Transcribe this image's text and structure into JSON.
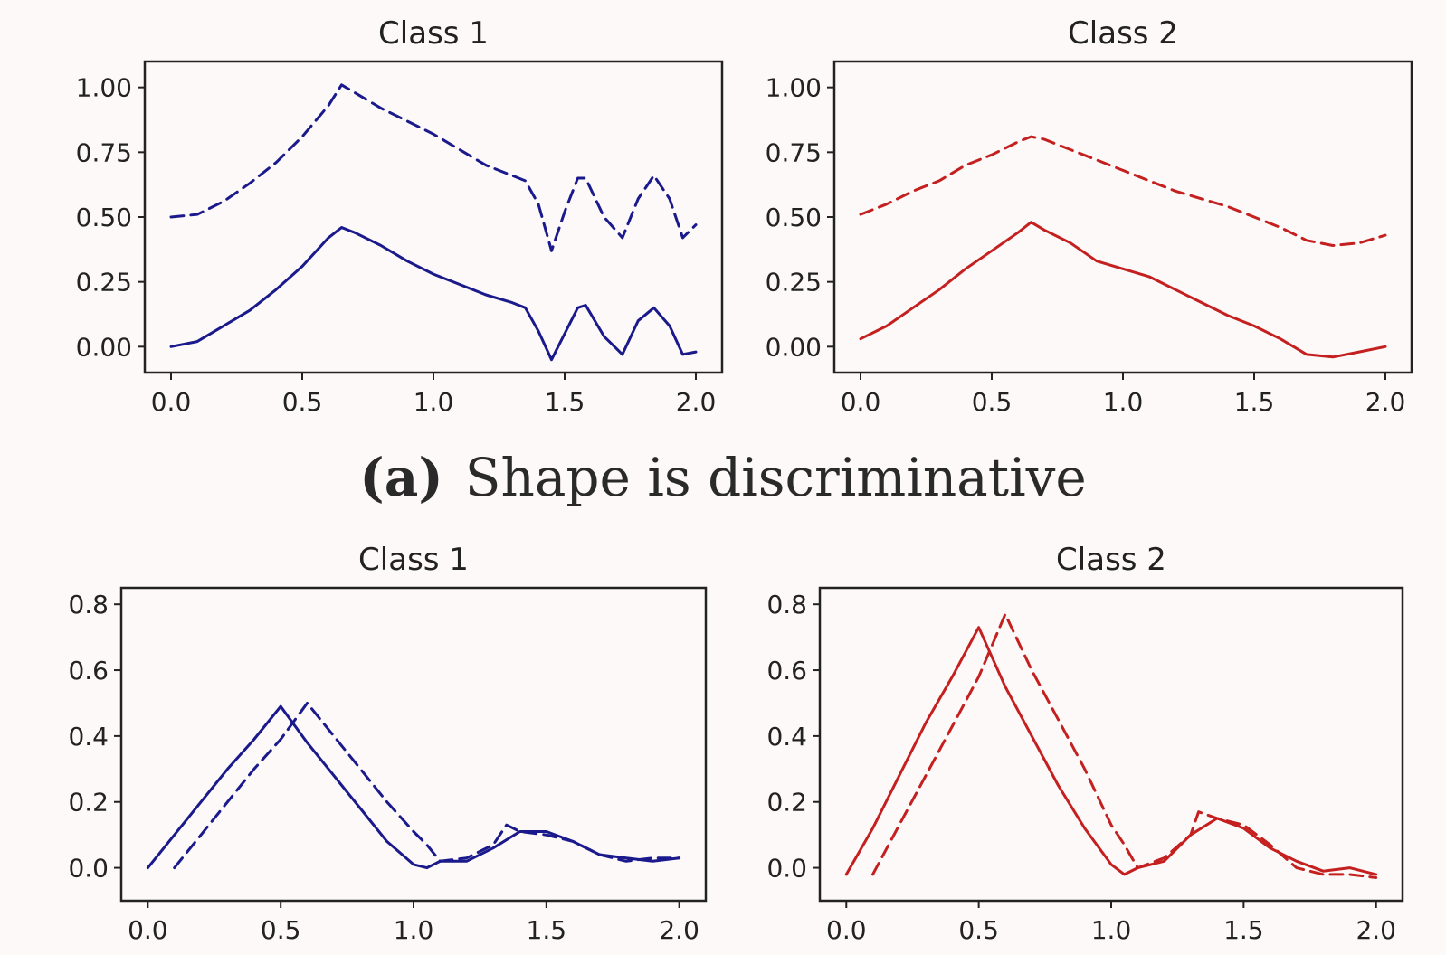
{
  "figure": {
    "caption_label": "(a)",
    "caption_text": "Shape is discriminative"
  },
  "chart_data": [
    {
      "type": "line",
      "title": "Class 1",
      "xlim": [
        -0.1,
        2.1
      ],
      "ylim": [
        -0.1,
        1.1
      ],
      "xticks": [
        "0.0",
        "0.5",
        "1.0",
        "1.5",
        "2.0"
      ],
      "yticks": [
        "0.00",
        "0.25",
        "0.50",
        "0.75",
        "1.00"
      ],
      "color": "#1a1a8c",
      "series": [
        {
          "style": "solid",
          "x": [
            0.0,
            0.1,
            0.2,
            0.3,
            0.4,
            0.5,
            0.6,
            0.65,
            0.7,
            0.8,
            0.9,
            1.0,
            1.1,
            1.2,
            1.3,
            1.35,
            1.4,
            1.45,
            1.5,
            1.55,
            1.58,
            1.65,
            1.72,
            1.78,
            1.84,
            1.9,
            1.95,
            2.0
          ],
          "y": [
            0.0,
            0.02,
            0.08,
            0.14,
            0.22,
            0.31,
            0.42,
            0.46,
            0.44,
            0.39,
            0.33,
            0.28,
            0.24,
            0.2,
            0.17,
            0.15,
            0.06,
            -0.05,
            0.05,
            0.15,
            0.16,
            0.04,
            -0.03,
            0.1,
            0.15,
            0.08,
            -0.03,
            -0.02
          ]
        },
        {
          "style": "dashed",
          "x": [
            0.0,
            0.1,
            0.2,
            0.3,
            0.4,
            0.5,
            0.6,
            0.65,
            0.7,
            0.8,
            0.9,
            1.0,
            1.1,
            1.2,
            1.3,
            1.35,
            1.4,
            1.45,
            1.5,
            1.55,
            1.58,
            1.65,
            1.72,
            1.78,
            1.84,
            1.9,
            1.95,
            2.0
          ],
          "y": [
            0.5,
            0.51,
            0.56,
            0.63,
            0.71,
            0.81,
            0.93,
            1.01,
            0.98,
            0.92,
            0.87,
            0.82,
            0.76,
            0.7,
            0.66,
            0.64,
            0.55,
            0.37,
            0.52,
            0.65,
            0.65,
            0.5,
            0.42,
            0.57,
            0.66,
            0.57,
            0.42,
            0.47
          ]
        }
      ]
    },
    {
      "type": "line",
      "title": "Class 2",
      "xlim": [
        -0.1,
        2.1
      ],
      "ylim": [
        -0.1,
        1.1
      ],
      "xticks": [
        "0.0",
        "0.5",
        "1.0",
        "1.5",
        "2.0"
      ],
      "yticks": [
        "0.00",
        "0.25",
        "0.50",
        "0.75",
        "1.00"
      ],
      "color": "#c42020",
      "series": [
        {
          "style": "solid",
          "x": [
            0.0,
            0.1,
            0.2,
            0.3,
            0.4,
            0.5,
            0.6,
            0.65,
            0.7,
            0.8,
            0.9,
            1.0,
            1.1,
            1.2,
            1.3,
            1.4,
            1.5,
            1.6,
            1.7,
            1.8,
            1.9,
            2.0
          ],
          "y": [
            0.03,
            0.08,
            0.15,
            0.22,
            0.3,
            0.37,
            0.44,
            0.48,
            0.45,
            0.4,
            0.33,
            0.3,
            0.27,
            0.22,
            0.17,
            0.12,
            0.08,
            0.03,
            -0.03,
            -0.04,
            -0.02,
            0.0
          ]
        },
        {
          "style": "dashed",
          "x": [
            0.0,
            0.1,
            0.2,
            0.3,
            0.4,
            0.5,
            0.6,
            0.65,
            0.7,
            0.8,
            0.9,
            1.0,
            1.1,
            1.2,
            1.3,
            1.4,
            1.5,
            1.6,
            1.7,
            1.8,
            1.9,
            2.0
          ],
          "y": [
            0.51,
            0.55,
            0.6,
            0.64,
            0.7,
            0.74,
            0.79,
            0.81,
            0.8,
            0.76,
            0.72,
            0.68,
            0.64,
            0.6,
            0.57,
            0.54,
            0.5,
            0.46,
            0.41,
            0.39,
            0.4,
            0.43
          ]
        }
      ]
    },
    {
      "type": "line",
      "title": "Class 1",
      "xlim": [
        -0.1,
        2.1
      ],
      "ylim": [
        -0.1,
        0.85
      ],
      "xticks": [
        "0.0",
        "0.5",
        "1.0",
        "1.5",
        "2.0"
      ],
      "yticks": [
        "0.0",
        "0.2",
        "0.4",
        "0.6",
        "0.8"
      ],
      "color": "#1a1a8c",
      "series": [
        {
          "style": "solid",
          "x": [
            0.0,
            0.1,
            0.2,
            0.3,
            0.4,
            0.5,
            0.6,
            0.7,
            0.8,
            0.9,
            1.0,
            1.05,
            1.1,
            1.2,
            1.3,
            1.4,
            1.5,
            1.6,
            1.7,
            1.8,
            1.9,
            2.0
          ],
          "y": [
            0.0,
            0.1,
            0.2,
            0.3,
            0.39,
            0.49,
            0.38,
            0.28,
            0.18,
            0.08,
            0.01,
            0.0,
            0.02,
            0.02,
            0.06,
            0.11,
            0.11,
            0.08,
            0.04,
            0.03,
            0.02,
            0.03
          ]
        },
        {
          "style": "dashed",
          "x": [
            0.1,
            0.2,
            0.3,
            0.4,
            0.5,
            0.6,
            0.7,
            0.8,
            0.9,
            1.0,
            1.05,
            1.1,
            1.2,
            1.3,
            1.35,
            1.4,
            1.5,
            1.6,
            1.7,
            1.8,
            1.9,
            2.0
          ],
          "y": [
            0.0,
            0.1,
            0.2,
            0.3,
            0.39,
            0.5,
            0.4,
            0.3,
            0.2,
            0.11,
            0.07,
            0.02,
            0.03,
            0.07,
            0.13,
            0.11,
            0.1,
            0.08,
            0.04,
            0.02,
            0.03,
            0.03
          ]
        }
      ]
    },
    {
      "type": "line",
      "title": "Class 2",
      "xlim": [
        -0.1,
        2.1
      ],
      "ylim": [
        -0.1,
        0.85
      ],
      "xticks": [
        "0.0",
        "0.5",
        "1.0",
        "1.5",
        "2.0"
      ],
      "yticks": [
        "0.0",
        "0.2",
        "0.4",
        "0.6",
        "0.8"
      ],
      "color": "#c42020",
      "series": [
        {
          "style": "solid",
          "x": [
            0.0,
            0.1,
            0.2,
            0.3,
            0.4,
            0.5,
            0.6,
            0.7,
            0.8,
            0.9,
            1.0,
            1.05,
            1.1,
            1.2,
            1.3,
            1.4,
            1.5,
            1.6,
            1.7,
            1.8,
            1.9,
            2.0
          ],
          "y": [
            -0.02,
            0.12,
            0.28,
            0.44,
            0.58,
            0.73,
            0.55,
            0.4,
            0.25,
            0.12,
            0.01,
            -0.02,
            0.0,
            0.02,
            0.1,
            0.15,
            0.12,
            0.06,
            0.02,
            -0.01,
            0.0,
            -0.02
          ]
        },
        {
          "style": "dashed",
          "x": [
            0.1,
            0.2,
            0.3,
            0.4,
            0.5,
            0.6,
            0.7,
            0.8,
            0.9,
            1.0,
            1.05,
            1.1,
            1.2,
            1.3,
            1.33,
            1.4,
            1.5,
            1.6,
            1.7,
            1.8,
            1.9,
            2.0
          ],
          "y": [
            -0.02,
            0.13,
            0.28,
            0.43,
            0.58,
            0.77,
            0.6,
            0.45,
            0.3,
            0.13,
            0.07,
            0.0,
            0.03,
            0.1,
            0.17,
            0.15,
            0.13,
            0.07,
            0.0,
            -0.02,
            -0.02,
            -0.03
          ]
        }
      ]
    }
  ]
}
